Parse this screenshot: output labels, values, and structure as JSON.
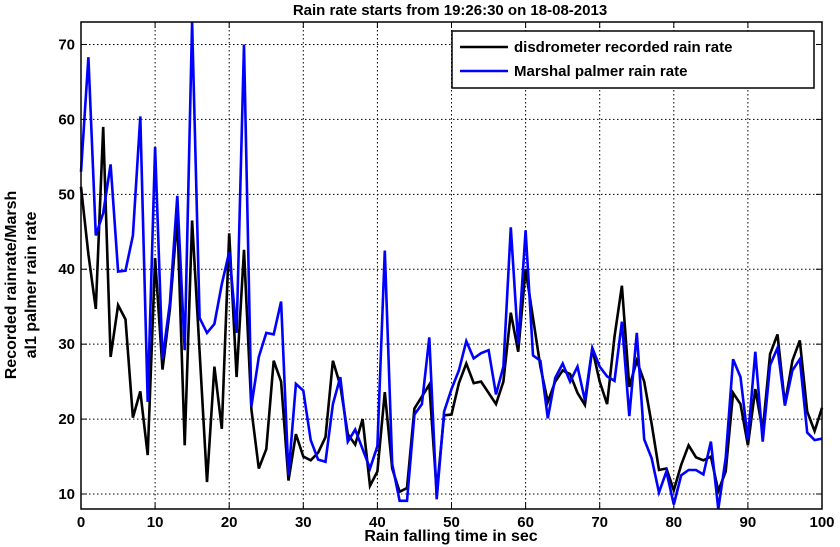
{
  "chart_data": {
    "type": "line",
    "title": "Rain rate starts from 19:26:30 on 18-08-2013",
    "xlabel": "Rain falling time in sec",
    "ylabel_lines": [
      "Recorded rainrate/Marsh",
      "al1 palmer rain rate"
    ],
    "xlim": [
      0,
      100
    ],
    "ylim": [
      8,
      73
    ],
    "xticks": [
      0,
      10,
      20,
      30,
      40,
      50,
      60,
      70,
      80,
      90,
      100
    ],
    "yticks": [
      10,
      20,
      30,
      40,
      50,
      60,
      70
    ],
    "grid": true,
    "legend_position": "top-right",
    "series": [
      {
        "name": "disdrometer recorded rain rate",
        "color": "#000000",
        "x": [
          0,
          1,
          2,
          3,
          4,
          5,
          6,
          7,
          8,
          9,
          10,
          11,
          12,
          13,
          14,
          15,
          16,
          17,
          18,
          19,
          20,
          21,
          22,
          23,
          24,
          25,
          26,
          27,
          28,
          29,
          30,
          31,
          32,
          33,
          34,
          35,
          36,
          37,
          38,
          39,
          40,
          41,
          42,
          43,
          44,
          45,
          46,
          47,
          48,
          49,
          50,
          51,
          52,
          53,
          54,
          55,
          56,
          57,
          58,
          59,
          60,
          61,
          62,
          63,
          64,
          65,
          66,
          67,
          68,
          69,
          70,
          71,
          72,
          73,
          74,
          75,
          76,
          77,
          78,
          79,
          80,
          81,
          82,
          83,
          84,
          85,
          86,
          87,
          88,
          89,
          90,
          91,
          92,
          93,
          94,
          95,
          96,
          97,
          98,
          99,
          100
        ],
        "y": [
          51,
          42,
          34.7,
          59,
          28.3,
          35.2,
          33.3,
          20.2,
          23.7,
          15.2,
          41.5,
          26.6,
          34.7,
          47,
          16.5,
          46.5,
          29,
          11.6,
          27,
          18.7,
          44.8,
          25.6,
          42.6,
          21.3,
          13.4,
          16,
          27.8,
          25,
          11.8,
          18,
          15,
          14.5,
          15.5,
          17.6,
          27.8,
          24.5,
          18,
          16.6,
          20,
          11.1,
          13,
          23.6,
          13.4,
          10.3,
          10.8,
          21.4,
          23,
          24.6,
          10.3,
          20.5,
          20.6,
          24.8,
          27.4,
          24.8,
          25,
          23.5,
          22,
          25,
          34.2,
          29,
          40,
          33.5,
          27,
          22.3,
          25,
          26.5,
          26,
          23.5,
          21.9,
          29.4,
          25,
          22,
          31,
          37.8,
          24.3,
          27.8,
          25,
          19.4,
          13.2,
          13.4,
          10.5,
          13.9,
          16.5,
          14.9,
          14.5,
          15,
          10.4,
          13,
          23.5,
          22,
          16.5,
          24,
          18.4,
          28.7,
          31.3,
          22,
          27.8,
          30.5,
          21,
          18.4,
          21.5
        ]
      },
      {
        "name": "Marshal palmer rain rate",
        "color": "#0000ff",
        "x": [
          0,
          1,
          2,
          3,
          4,
          5,
          6,
          7,
          8,
          9,
          10,
          11,
          12,
          13,
          14,
          15,
          16,
          17,
          18,
          19,
          20,
          21,
          22,
          23,
          24,
          25,
          26,
          27,
          28,
          29,
          30,
          31,
          32,
          33,
          34,
          35,
          36,
          37,
          38,
          39,
          40,
          41,
          42,
          43,
          44,
          45,
          46,
          47,
          48,
          49,
          50,
          51,
          52,
          53,
          54,
          55,
          56,
          57,
          58,
          59,
          60,
          61,
          62,
          63,
          64,
          65,
          66,
          67,
          68,
          69,
          70,
          71,
          72,
          73,
          74,
          75,
          76,
          77,
          78,
          79,
          80,
          81,
          82,
          83,
          84,
          85,
          86,
          87,
          88,
          89,
          90,
          91,
          92,
          93,
          94,
          95,
          96,
          97,
          98,
          99,
          100
        ],
        "y": [
          53,
          68.3,
          44.5,
          47.5,
          54,
          39.7,
          39.8,
          44.5,
          60.4,
          22.3,
          56.3,
          28,
          35.5,
          49.8,
          29.2,
          73,
          33.5,
          31.5,
          32.7,
          38,
          42.3,
          31.5,
          70,
          21.7,
          28.3,
          31.5,
          31.3,
          35.7,
          12.5,
          24.7,
          23.8,
          17.2,
          14.6,
          14.3,
          22,
          25.6,
          17,
          18.6,
          16,
          13.4,
          16.4,
          42.5,
          14,
          9.1,
          9.1,
          20.6,
          22,
          30.9,
          9.3,
          21,
          24,
          26.5,
          30.4,
          28.1,
          28.8,
          29.2,
          23.3,
          27,
          45.6,
          30,
          45.2,
          28.5,
          27.8,
          20.1,
          25.5,
          27.4,
          25,
          27,
          22.5,
          29.5,
          27,
          25.7,
          25.1,
          33,
          20.4,
          31.5,
          17.3,
          14.8,
          10.2,
          13,
          8.6,
          12.5,
          13.2,
          13.2,
          12.6,
          17,
          8,
          14.8,
          28,
          25.6,
          17.3,
          29,
          17,
          27.2,
          29.5,
          21.8,
          26.5,
          28,
          18.2,
          17.2,
          17.4
        ]
      }
    ]
  }
}
